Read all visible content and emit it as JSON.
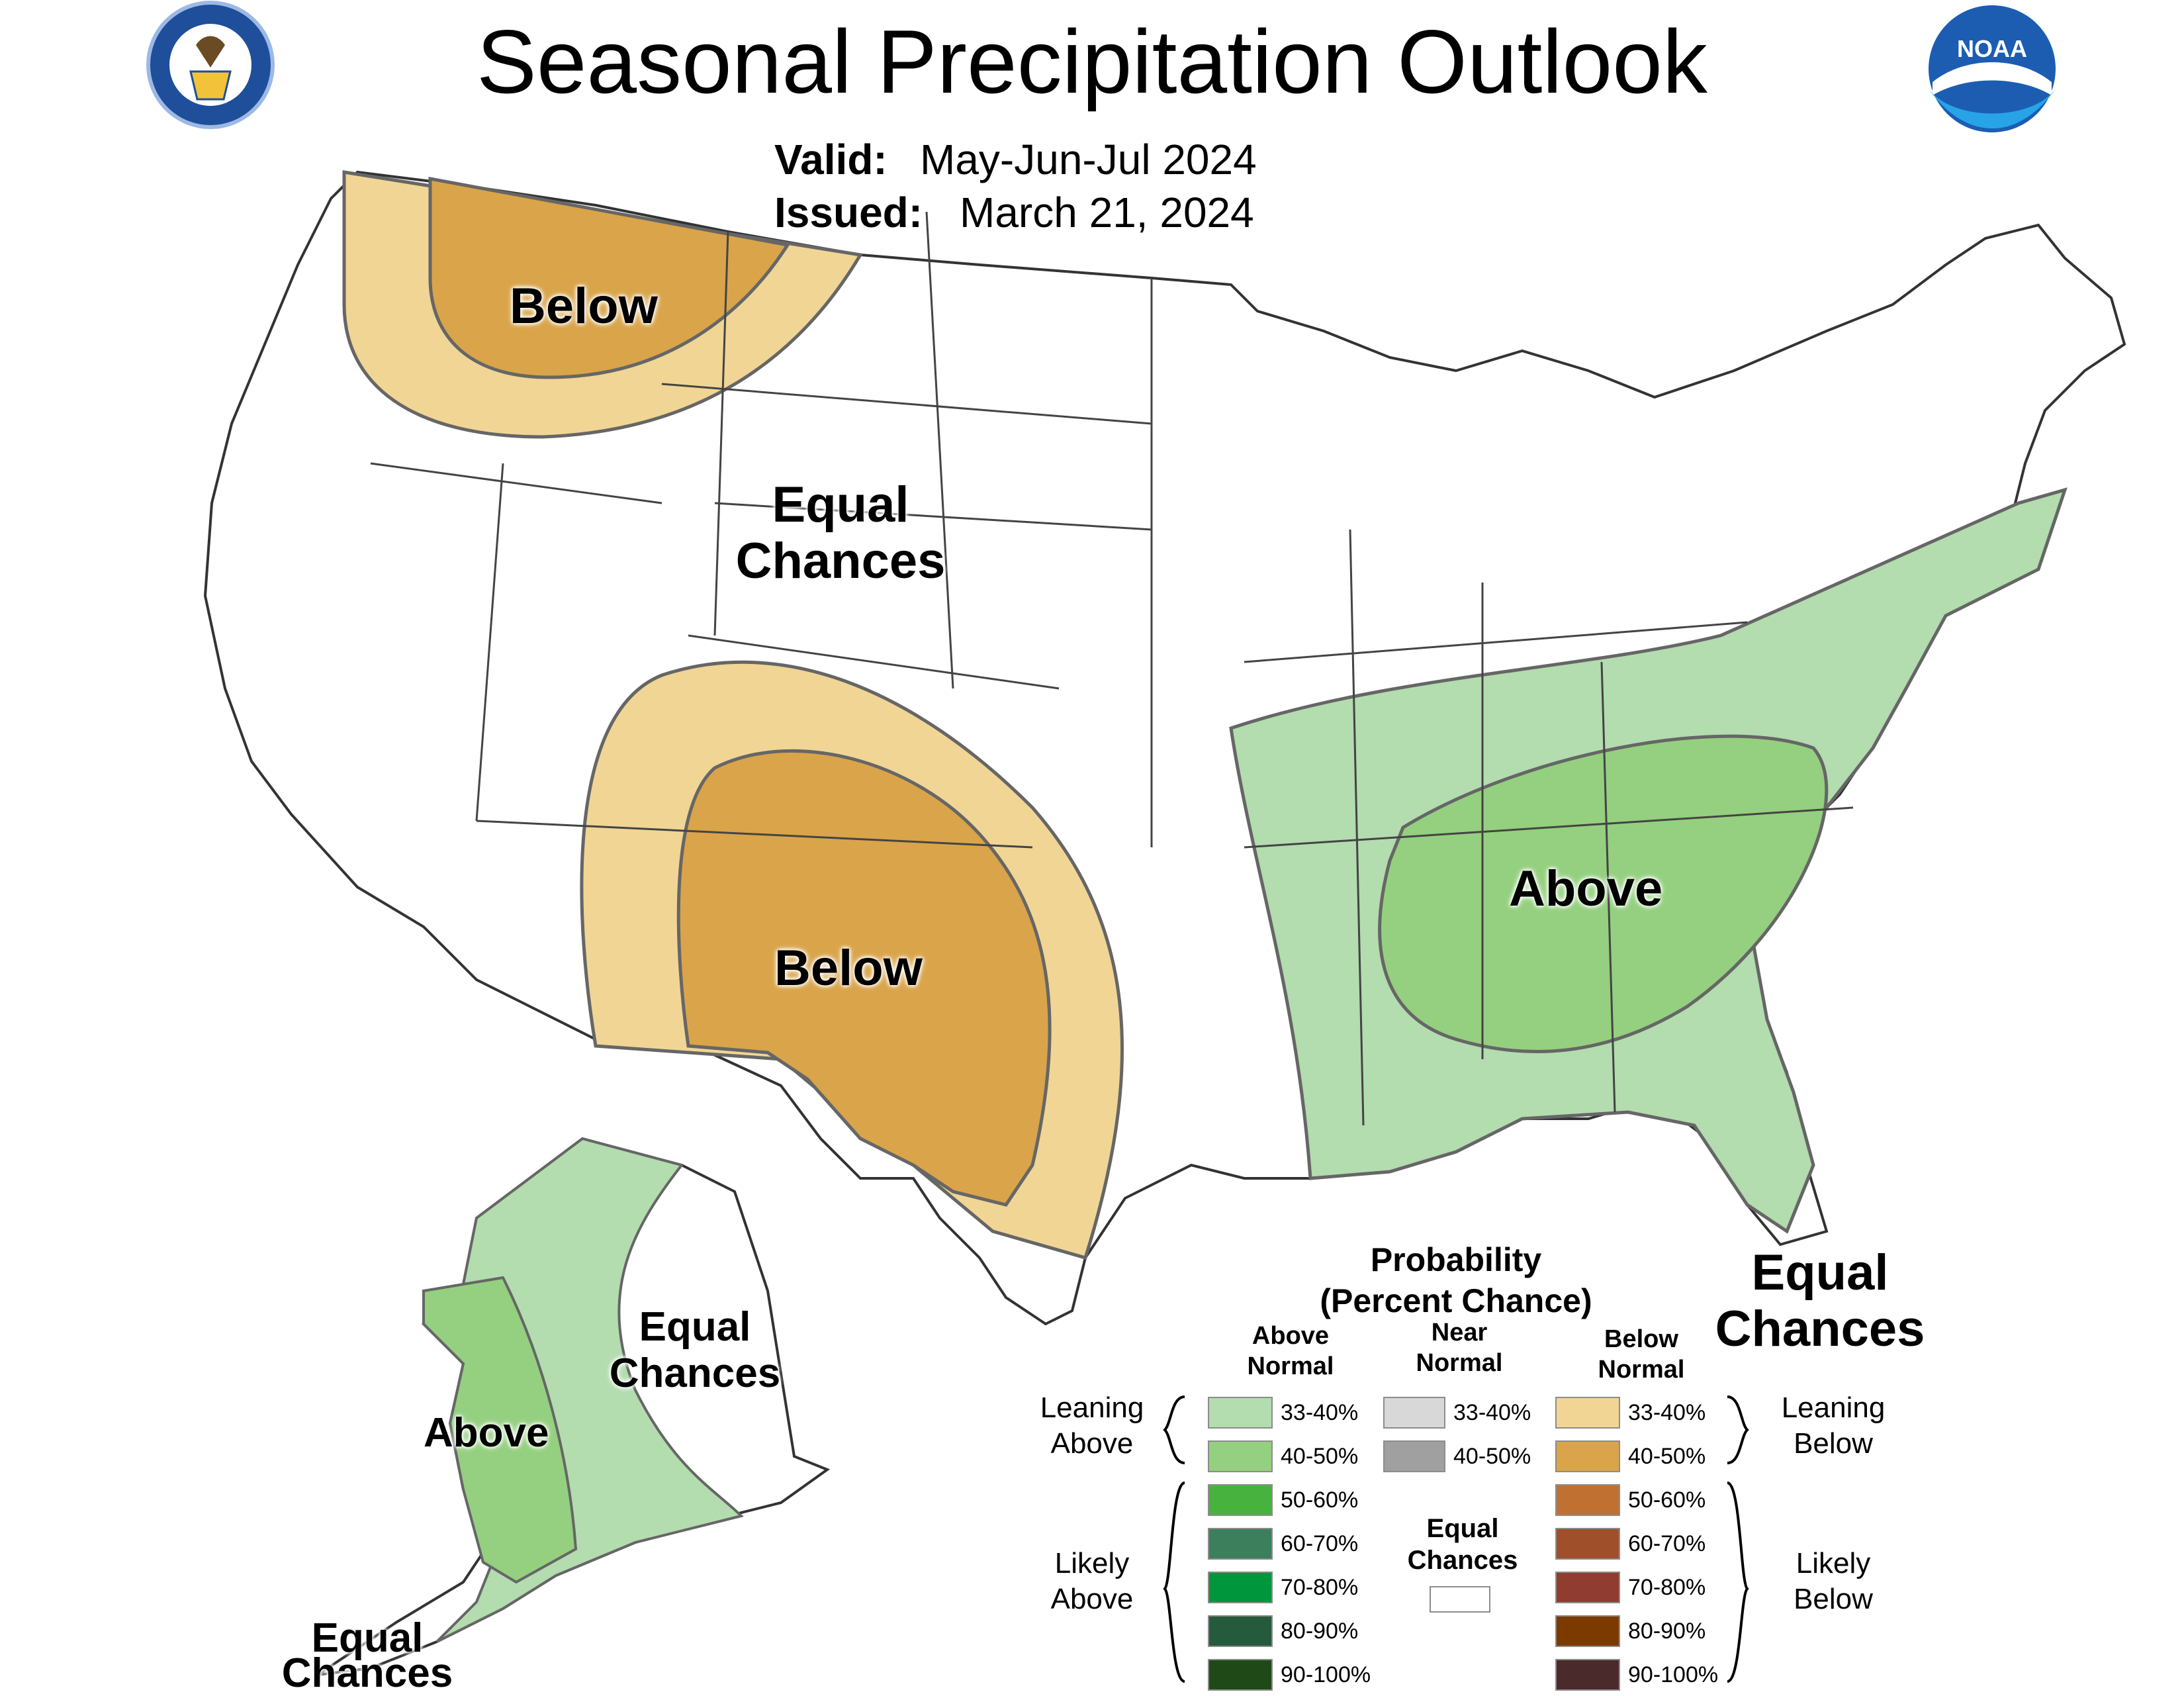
{
  "title": "Seasonal Precipitation Outlook",
  "valid_label": "Valid:",
  "valid_value": "May-Jun-Jul 2024",
  "issued_label": "Issued:",
  "issued_value": "March 21, 2024",
  "logos": {
    "left": "Department of Commerce seal",
    "right": "NOAA logo",
    "right_text": "NOAA"
  },
  "regions": {
    "nw_below": "Below",
    "center_equal_1": "Equal",
    "center_equal_2": "Chances",
    "sw_below": "Below",
    "se_above": "Above",
    "fl_equal_1": "Equal",
    "fl_equal_2": "Chances",
    "ak_above": "Above",
    "ak_equal_1": "Equal",
    "ak_equal_2": "Chances",
    "ak_sw_equal_1": "Equal",
    "ak_sw_equal_2": "Chances"
  },
  "legend": {
    "title_1": "Probability",
    "title_2": "(Percent Chance)",
    "above_header_1": "Above",
    "above_header_2": "Normal",
    "near_header_1": "Near",
    "near_header_2": "Normal",
    "below_header_1": "Below",
    "below_header_2": "Normal",
    "leaning_above_1": "Leaning",
    "leaning_above_2": "Above",
    "likely_above_1": "Likely",
    "likely_above_2": "Above",
    "leaning_below_1": "Leaning",
    "leaning_below_2": "Below",
    "likely_below_1": "Likely",
    "likely_below_2": "Below",
    "equal_1": "Equal",
    "equal_2": "Chances",
    "above": [
      {
        "range": "33-40%",
        "color": "#b3dcaf"
      },
      {
        "range": "40-50%",
        "color": "#94d07f"
      },
      {
        "range": "50-60%",
        "color": "#48b23f"
      },
      {
        "range": "60-70%",
        "color": "#3c7f5d"
      },
      {
        "range": "70-80%",
        "color": "#00963c"
      },
      {
        "range": "80-90%",
        "color": "#265a3c"
      },
      {
        "range": "90-100%",
        "color": "#1f4a18"
      }
    ],
    "near": [
      {
        "range": "33-40%",
        "color": "#d8d8d8"
      },
      {
        "range": "40-50%",
        "color": "#a0a0a0"
      }
    ],
    "below": [
      {
        "range": "33-40%",
        "color": "#f0d595"
      },
      {
        "range": "40-50%",
        "color": "#d9a44a"
      },
      {
        "range": "50-60%",
        "color": "#c07132"
      },
      {
        "range": "60-70%",
        "color": "#a04f2b"
      },
      {
        "range": "70-80%",
        "color": "#903c30"
      },
      {
        "range": "80-90%",
        "color": "#7d3a00"
      },
      {
        "range": "90-100%",
        "color": "#4a2a2a"
      }
    ]
  }
}
